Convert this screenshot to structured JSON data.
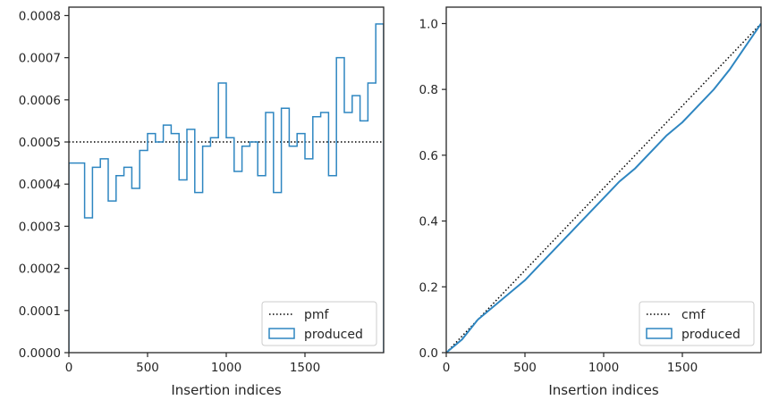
{
  "colors": {
    "series": "#2e86c1",
    "reference": "#000000",
    "axes": "#262626"
  },
  "chart_data": [
    {
      "type": "step",
      "xlabel": "Insertion indices",
      "ylabel": "",
      "xlim": [
        0,
        2000
      ],
      "ylim": [
        0,
        0.00082
      ],
      "xticks": [
        0,
        500,
        1000,
        1500
      ],
      "xtick_labels": [
        "0",
        "500",
        "1000",
        "1500"
      ],
      "yticks": [
        0,
        0.0001,
        0.0002,
        0.0003,
        0.0004,
        0.0005,
        0.0006,
        0.0007,
        0.0008
      ],
      "ytick_labels": [
        "0.0000",
        "0.0001",
        "0.0002",
        "0.0003",
        "0.0004",
        "0.0005",
        "0.0006",
        "0.0007",
        "0.0008"
      ],
      "grid": false,
      "legend_position": "bottom-right",
      "series": [
        {
          "name": "pmf",
          "style": "dotted",
          "y": 0.0005
        },
        {
          "name": "produced",
          "style": "histogram-step",
          "bin_width": 50,
          "values": [
            0.00045,
            0.00045,
            0.00032,
            0.00044,
            0.00046,
            0.00036,
            0.00042,
            0.00044,
            0.00039,
            0.00048,
            0.00052,
            0.0005,
            0.00054,
            0.00052,
            0.00041,
            0.00053,
            0.00038,
            0.00049,
            0.00051,
            0.00064,
            0.00051,
            0.00043,
            0.00049,
            0.0005,
            0.00042,
            0.00057,
            0.00038,
            0.00058,
            0.00049,
            0.00052,
            0.00046,
            0.00056,
            0.00057,
            0.00042,
            0.0007,
            0.00057,
            0.00061,
            0.00055,
            0.00064,
            0.00078
          ]
        }
      ]
    },
    {
      "type": "line",
      "xlabel": "Insertion indices",
      "ylabel": "",
      "xlim": [
        0,
        2000
      ],
      "ylim": [
        0,
        1.05
      ],
      "xticks": [
        0,
        500,
        1000,
        1500
      ],
      "xtick_labels": [
        "0",
        "500",
        "1000",
        "1500"
      ],
      "yticks": [
        0,
        0.2,
        0.4,
        0.6,
        0.8,
        1.0
      ],
      "ytick_labels": [
        "0.0",
        "0.2",
        "0.4",
        "0.6",
        "0.8",
        "1.0"
      ],
      "grid": false,
      "legend_position": "bottom-right",
      "series": [
        {
          "name": "cmf",
          "style": "dotted",
          "x": [
            0,
            2000
          ],
          "y": [
            0,
            1.0
          ]
        },
        {
          "name": "produced",
          "style": "solid",
          "x": [
            0,
            100,
            200,
            300,
            400,
            500,
            600,
            700,
            800,
            900,
            1000,
            1100,
            1200,
            1300,
            1400,
            1500,
            1600,
            1700,
            1800,
            1900,
            2000
          ],
          "y": [
            0,
            0.04,
            0.1,
            0.14,
            0.18,
            0.22,
            0.27,
            0.32,
            0.37,
            0.42,
            0.47,
            0.52,
            0.56,
            0.61,
            0.66,
            0.7,
            0.75,
            0.8,
            0.86,
            0.93,
            1.0
          ]
        }
      ]
    }
  ]
}
